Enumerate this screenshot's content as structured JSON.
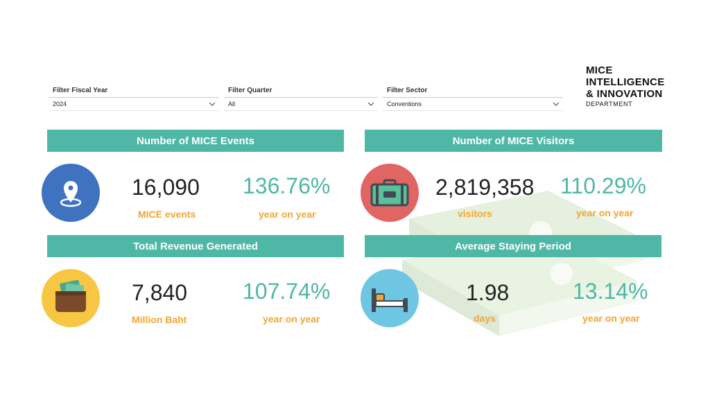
{
  "filters": [
    {
      "label": "Filter Fiscal Year",
      "value": "2024"
    },
    {
      "label": "Filter Quarter",
      "value": "All"
    },
    {
      "label": "Filter Sector",
      "value": "Conventions"
    }
  ],
  "logo": {
    "line1": "MICE",
    "line2": "INTELLIGENCE",
    "line3": "& INNOVATION",
    "line4": "DEPARTMENT"
  },
  "cards": {
    "events": {
      "title": "Number of MICE Events",
      "value": "16,090",
      "unit": "MICE events",
      "change": "136.76%",
      "change_label": "year on year",
      "icon": "location-pin-icon"
    },
    "visitors": {
      "title": "Number of MICE Visitors",
      "value": "2,819,358",
      "unit": "visitors",
      "change": "110.29%",
      "change_label": "year on year",
      "icon": "suitcase-icon"
    },
    "revenue": {
      "title": "Total Revenue Generated",
      "value": "7,840",
      "unit": "Million Baht",
      "change": "107.74%",
      "change_label": "year on year",
      "icon": "wallet-icon"
    },
    "stay": {
      "title": "Average Staying Period",
      "value": "1.98",
      "unit": "days",
      "change": "13.14%",
      "change_label": "year on year",
      "icon": "bed-icon"
    }
  },
  "colors": {
    "accent": "#4fb7a5",
    "label": "#f2a631",
    "pin_bg": "#3f73c0",
    "suitcase_bg": "#e06563",
    "wallet_bg": "#f7c744",
    "bed_bg": "#6ec6e2"
  }
}
